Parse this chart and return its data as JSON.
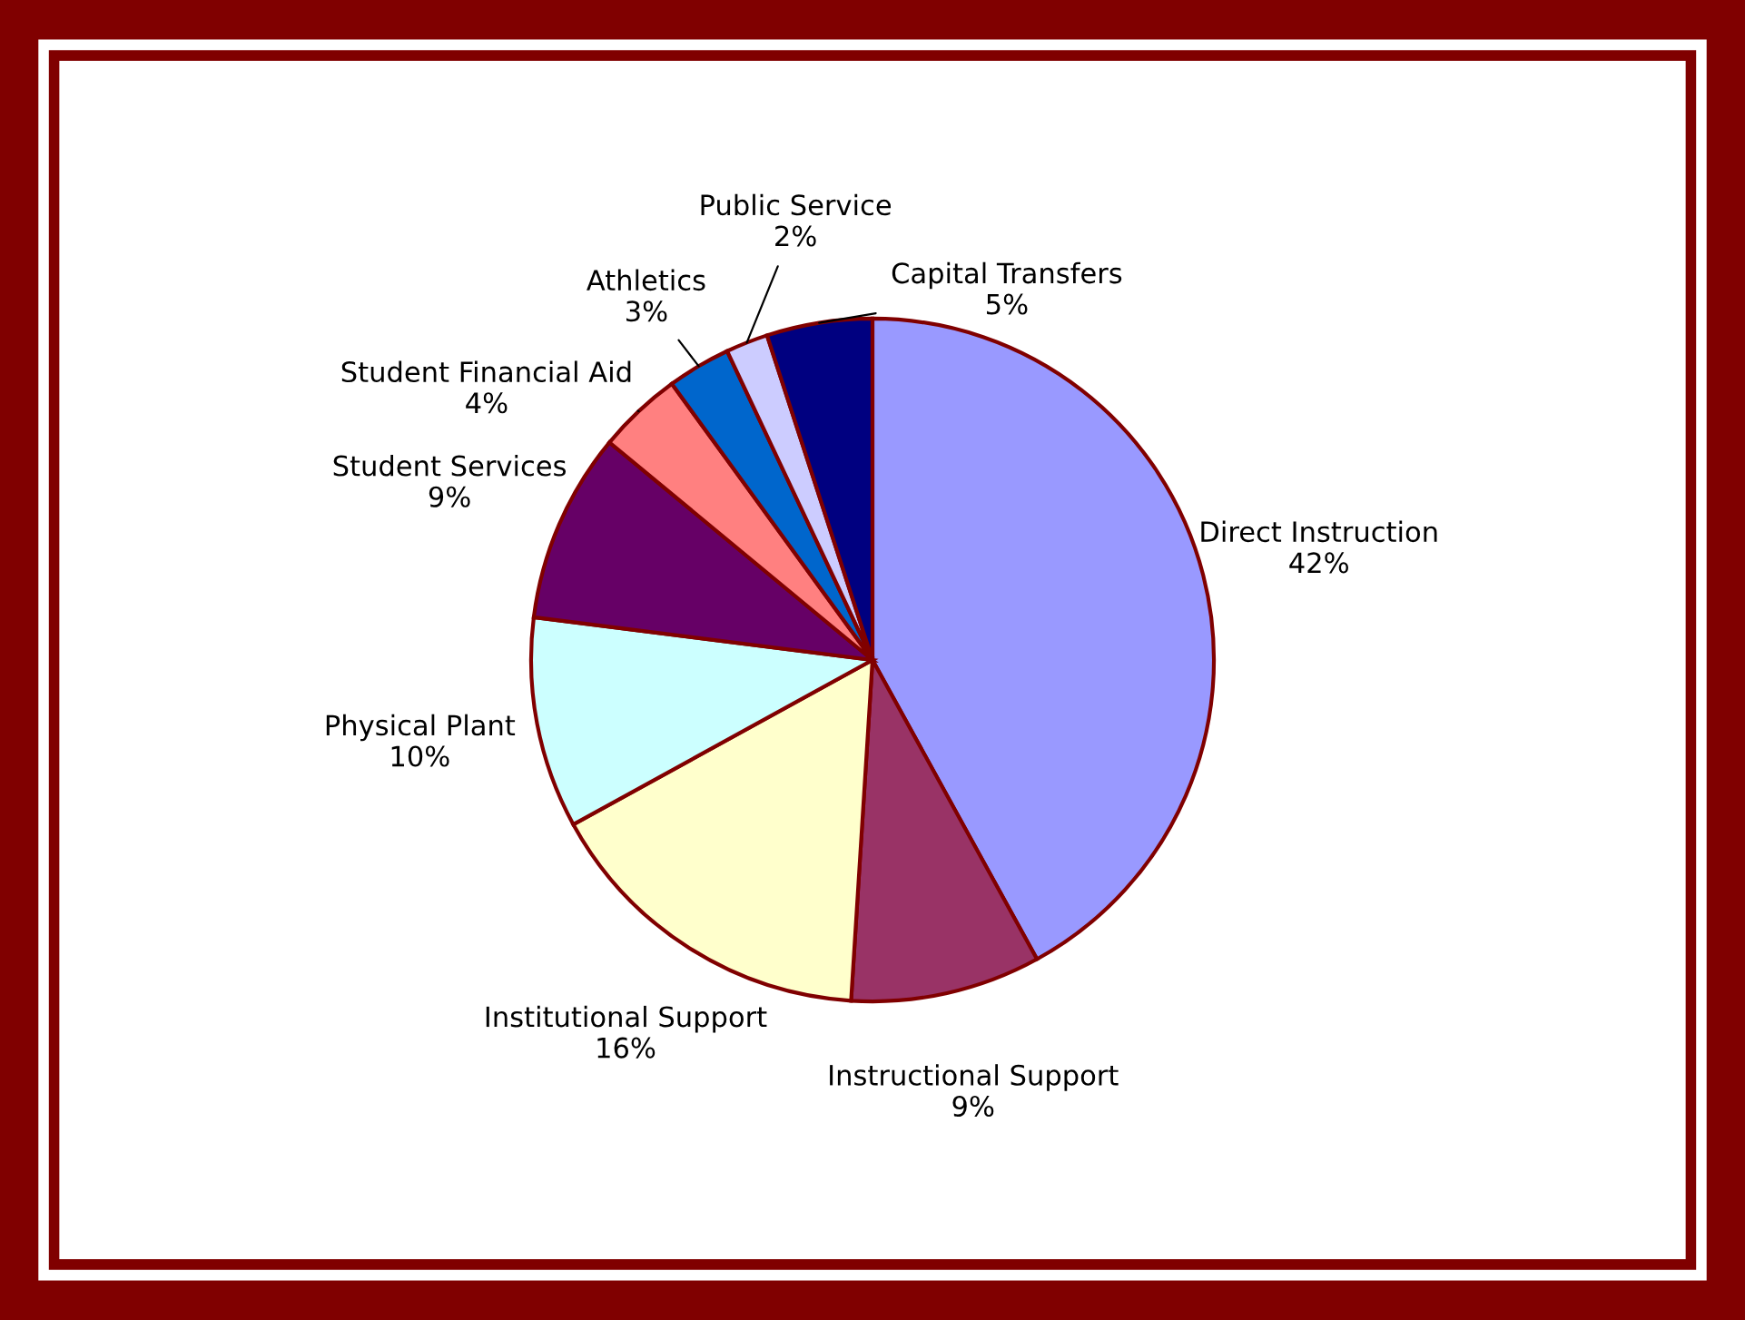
{
  "chart_data": {
    "type": "pie",
    "categories": [
      "Direct Instruction",
      "Instructional Support",
      "Institutional Support",
      "Physical Plant",
      "Student Services",
      "Student Financial Aid",
      "Athletics",
      "Public Service",
      "Capital Transfers"
    ],
    "values": [
      42,
      9,
      16,
      10,
      9,
      4,
      3,
      2,
      5
    ],
    "colors": [
      "#9999ff",
      "#993366",
      "#ffffcc",
      "#ccffff",
      "#660066",
      "#ff8080",
      "#0066cc",
      "#ccccff",
      "#000080"
    ],
    "value_labels": [
      "42%",
      "9%",
      "16%",
      "10%",
      "9%",
      "4%",
      "3%",
      "2%",
      "5%"
    ],
    "legend": false
  }
}
